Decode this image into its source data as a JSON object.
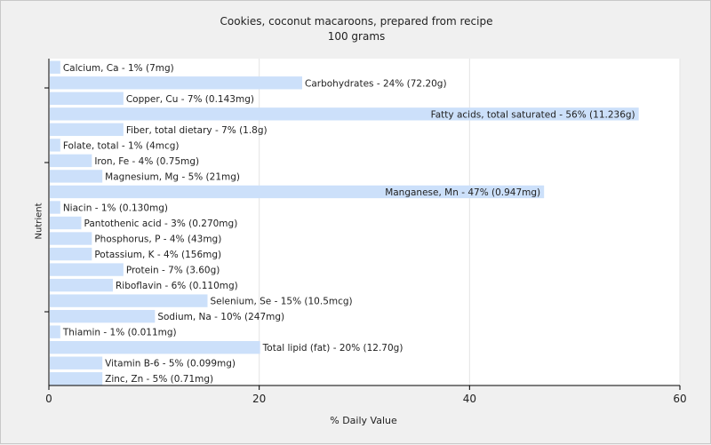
{
  "chart_data": {
    "type": "bar",
    "orientation": "horizontal",
    "title": "Cookies, coconut macaroons, prepared from recipe",
    "subtitle": "100 grams",
    "xlabel": "% Daily Value",
    "ylabel": "Nutrient",
    "xlim": [
      0,
      60
    ],
    "xticks": [
      0,
      20,
      40,
      60
    ],
    "grid": true,
    "bar_color": "#cce0fa",
    "categories": [
      "Calcium, Ca",
      "Carbohydrates",
      "Copper, Cu",
      "Fatty acids, total saturated",
      "Fiber, total dietary",
      "Folate, total",
      "Iron, Fe",
      "Magnesium, Mg",
      "Manganese, Mn",
      "Niacin",
      "Pantothenic acid",
      "Phosphorus, P",
      "Potassium, K",
      "Protein",
      "Riboflavin",
      "Selenium, Se",
      "Sodium, Na",
      "Thiamin",
      "Total lipid (fat)",
      "Vitamin B-6",
      "Zinc, Zn"
    ],
    "values": [
      1,
      24,
      7,
      56,
      7,
      1,
      4,
      5,
      47,
      1,
      3,
      4,
      4,
      7,
      6,
      15,
      10,
      1,
      20,
      5,
      5
    ],
    "labels": [
      "Calcium, Ca - 1% (7mg)",
      "Carbohydrates - 24% (72.20g)",
      "Copper, Cu - 7% (0.143mg)",
      "Fatty acids, total saturated - 56% (11.236g)",
      "Fiber, total dietary - 7% (1.8g)",
      "Folate, total - 1% (4mcg)",
      "Iron, Fe - 4% (0.75mg)",
      "Magnesium, Mg - 5% (21mg)",
      "Manganese, Mn - 47% (0.947mg)",
      "Niacin - 1% (0.130mg)",
      "Pantothenic acid - 3% (0.270mg)",
      "Phosphorus, P - 4% (43mg)",
      "Potassium, K - 4% (156mg)",
      "Protein - 7% (3.60g)",
      "Riboflavin - 6% (0.110mg)",
      "Selenium, Se - 15% (10.5mcg)",
      "Sodium, Na - 10% (247mg)",
      "Thiamin - 1% (0.011mg)",
      "Total lipid (fat) - 20% (12.70g)",
      "Vitamin B-6 - 5% (0.099mg)",
      "Zinc, Zn - 5% (0.71mg)"
    ]
  }
}
